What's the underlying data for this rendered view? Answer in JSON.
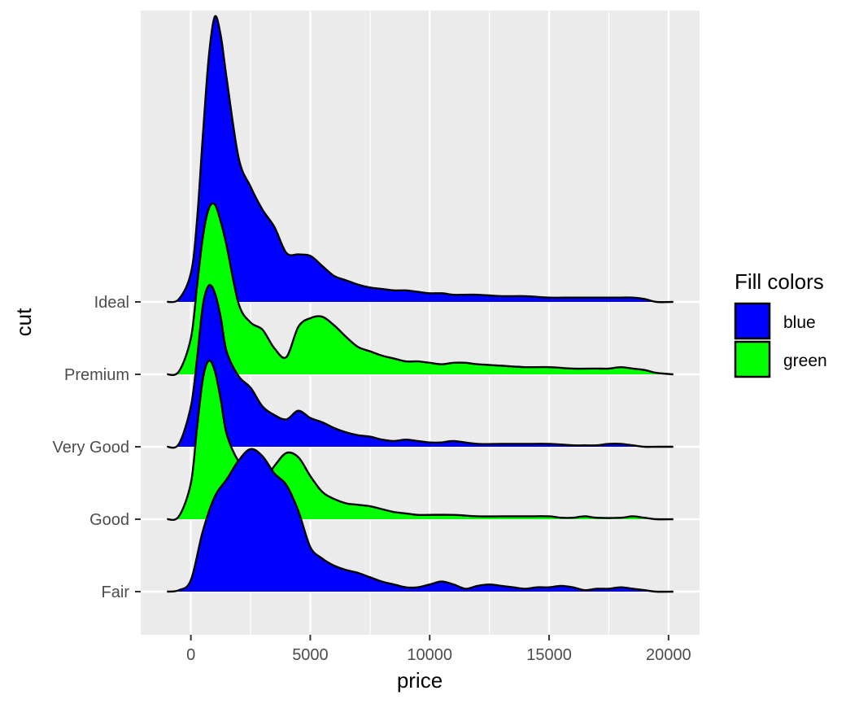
{
  "chart_data": {
    "type": "ridgeline",
    "xlabel": "price",
    "ylabel": "cut",
    "xlim": [
      -2100,
      21300
    ],
    "x_ticks": [
      0,
      5000,
      10000,
      15000,
      20000
    ],
    "x_tick_labels": [
      "0",
      "5000",
      "10000",
      "15000",
      "20000"
    ],
    "categories": [
      "Fair",
      "Good",
      "Very Good",
      "Premium",
      "Ideal"
    ],
    "grid": true,
    "legend": {
      "title": "Fill colors",
      "position": "right",
      "entries": [
        {
          "label": "blue",
          "color": "#0000FF"
        },
        {
          "label": "green",
          "color": "#00FF00"
        }
      ]
    },
    "series": [
      {
        "category": "Fair",
        "fill": "#0000FF",
        "x": [
          -1000,
          -500,
          0,
          500,
          1000,
          1500,
          2000,
          2500,
          3000,
          3500,
          4000,
          4500,
          5000,
          5500,
          6000,
          6500,
          7000,
          7500,
          8000,
          8500,
          9000,
          9500,
          10000,
          10500,
          11000,
          11500,
          12000,
          12500,
          13000,
          13500,
          14000,
          14500,
          15000,
          15500,
          16000,
          16500,
          17000,
          17500,
          18000,
          18500,
          19000,
          19500,
          20200
        ],
        "y": [
          0,
          0.01,
          0.08,
          0.42,
          0.66,
          0.78,
          0.91,
          0.99,
          0.94,
          0.82,
          0.74,
          0.56,
          0.31,
          0.23,
          0.18,
          0.15,
          0.13,
          0.1,
          0.07,
          0.05,
          0.03,
          0.03,
          0.05,
          0.07,
          0.05,
          0.02,
          0.04,
          0.05,
          0.04,
          0.03,
          0.02,
          0.03,
          0.03,
          0.04,
          0.03,
          0.01,
          0.02,
          0.02,
          0.03,
          0.02,
          0.01,
          0.0,
          0
        ]
      },
      {
        "category": "Good",
        "fill": "#00FF00",
        "x": [
          -1000,
          -500,
          0,
          250,
          500,
          750,
          1000,
          1250,
          1500,
          2000,
          2500,
          3000,
          3500,
          4000,
          4500,
          5000,
          5500,
          6000,
          6500,
          7000,
          7500,
          8000,
          8500,
          9000,
          9500,
          10000,
          11000,
          12000,
          13000,
          14000,
          15000,
          15500,
          16000,
          16500,
          17000,
          18000,
          18500,
          19000,
          19500,
          20200
        ],
        "y": [
          0,
          0.02,
          0.25,
          0.62,
          0.97,
          1.1,
          1.03,
          0.83,
          0.59,
          0.4,
          0.32,
          0.26,
          0.37,
          0.46,
          0.43,
          0.3,
          0.19,
          0.14,
          0.11,
          0.1,
          0.09,
          0.07,
          0.05,
          0.04,
          0.03,
          0.03,
          0.03,
          0.02,
          0.02,
          0.02,
          0.02,
          0.01,
          0.01,
          0.02,
          0.01,
          0.01,
          0.02,
          0.01,
          0.0,
          0
        ]
      },
      {
        "category": "Very Good",
        "fill": "#0000FF",
        "x": [
          -1000,
          -500,
          0,
          250,
          500,
          750,
          1000,
          1250,
          1500,
          2000,
          2500,
          3000,
          3500,
          4000,
          4500,
          5000,
          5500,
          6000,
          6500,
          7000,
          7500,
          8000,
          8500,
          9000,
          9500,
          10000,
          10500,
          11000,
          12000,
          13000,
          14000,
          15000,
          16000,
          16500,
          17000,
          17500,
          18000,
          18500,
          19000,
          19500,
          20200
        ],
        "y": [
          0,
          0.02,
          0.28,
          0.6,
          0.98,
          1.12,
          1.07,
          0.9,
          0.66,
          0.49,
          0.41,
          0.28,
          0.22,
          0.19,
          0.25,
          0.2,
          0.17,
          0.13,
          0.1,
          0.08,
          0.07,
          0.05,
          0.04,
          0.05,
          0.04,
          0.03,
          0.03,
          0.04,
          0.02,
          0.02,
          0.02,
          0.02,
          0.01,
          0.01,
          0.01,
          0.02,
          0.02,
          0.01,
          0.0,
          0.0,
          0
        ]
      },
      {
        "category": "Premium",
        "fill": "#00FF00",
        "x": [
          -1000,
          -500,
          0,
          250,
          500,
          750,
          1000,
          1250,
          1500,
          2000,
          2500,
          3000,
          3500,
          4000,
          4500,
          5000,
          5500,
          6000,
          6500,
          7000,
          7500,
          8000,
          8500,
          9000,
          9500,
          10000,
          10500,
          11000,
          11500,
          12000,
          13000,
          14000,
          15000,
          16000,
          17000,
          17500,
          18000,
          18500,
          19000,
          19500,
          20200
        ],
        "y": [
          0,
          0.02,
          0.25,
          0.6,
          0.95,
          1.15,
          1.18,
          1.06,
          0.89,
          0.49,
          0.36,
          0.31,
          0.18,
          0.12,
          0.33,
          0.39,
          0.4,
          0.34,
          0.26,
          0.19,
          0.16,
          0.13,
          0.11,
          0.09,
          0.09,
          0.08,
          0.07,
          0.08,
          0.08,
          0.07,
          0.06,
          0.05,
          0.05,
          0.04,
          0.04,
          0.04,
          0.05,
          0.04,
          0.03,
          0.01,
          0
        ]
      },
      {
        "category": "Ideal",
        "fill": "#0000FF",
        "x": [
          -1000,
          -500,
          0,
          250,
          500,
          750,
          1000,
          1250,
          1500,
          2000,
          2500,
          3000,
          3500,
          4000,
          4500,
          5000,
          5500,
          6000,
          6500,
          7000,
          7500,
          8000,
          8500,
          9000,
          9500,
          10000,
          10500,
          11000,
          11500,
          12000,
          13000,
          14000,
          15000,
          16000,
          17000,
          17500,
          18000,
          18500,
          19000,
          19500,
          20200
        ],
        "y": [
          0,
          0.02,
          0.2,
          0.55,
          1.15,
          1.7,
          1.98,
          1.85,
          1.55,
          1.0,
          0.8,
          0.64,
          0.52,
          0.34,
          0.33,
          0.32,
          0.25,
          0.18,
          0.15,
          0.12,
          0.1,
          0.09,
          0.08,
          0.08,
          0.07,
          0.06,
          0.06,
          0.05,
          0.05,
          0.05,
          0.04,
          0.04,
          0.03,
          0.03,
          0.03,
          0.03,
          0.03,
          0.03,
          0.02,
          0.0,
          0
        ]
      }
    ]
  }
}
